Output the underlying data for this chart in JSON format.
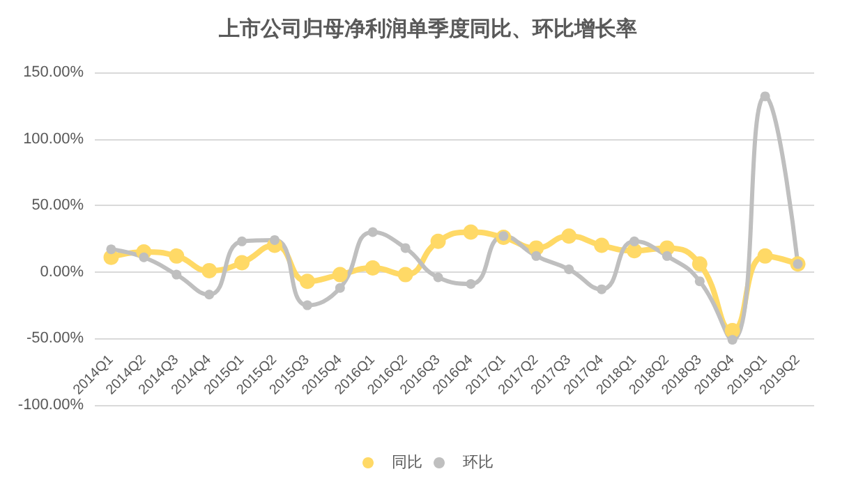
{
  "chart_data": {
    "type": "line",
    "title": "上市公司归母净利润单季度同比、环比增长率",
    "categories": [
      "2014Q1",
      "2014Q2",
      "2014Q3",
      "2014Q4",
      "2015Q1",
      "2015Q2",
      "2015Q3",
      "2015Q4",
      "2016Q1",
      "2016Q2",
      "2016Q3",
      "2016Q4",
      "2017Q1",
      "2017Q2",
      "2017Q3",
      "2017Q4",
      "2018Q1",
      "2018Q2",
      "2018Q3",
      "2018Q4",
      "2019Q1",
      "2019Q2"
    ],
    "series": [
      {
        "name": "同比",
        "color": "#ffd966",
        "values": [
          11,
          15,
          12,
          1,
          7,
          20,
          -7,
          -2,
          3,
          -2,
          23,
          30,
          26,
          18,
          27,
          20,
          16,
          18,
          6,
          -44,
          12,
          6
        ]
      },
      {
        "name": "环比",
        "color": "#bfbfbf",
        "values": [
          17,
          11,
          -2,
          -17,
          23,
          24,
          -25,
          -12,
          30,
          18,
          -4,
          -9,
          27,
          12,
          2,
          -13,
          23,
          12,
          -7,
          -51,
          132,
          6
        ]
      }
    ],
    "ylim": [
      -100,
      150
    ],
    "yticks": [
      {
        "value": -100,
        "label": "-100.00%"
      },
      {
        "value": -50,
        "label": "-50.00%"
      },
      {
        "value": 0,
        "label": "0.00%"
      },
      {
        "value": 50,
        "label": "50.00%"
      },
      {
        "value": 100,
        "label": "100.00%"
      },
      {
        "value": 150,
        "label": "150.00%"
      }
    ],
    "grid": "y",
    "legend": "bottom",
    "marker": "circle",
    "line_style": "solid"
  }
}
